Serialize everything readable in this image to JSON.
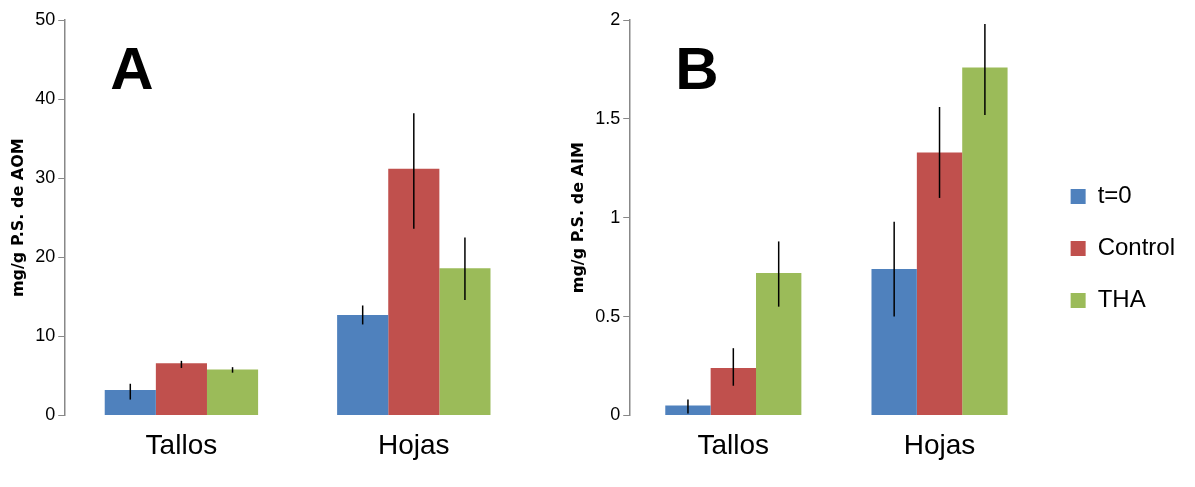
{
  "chart_data": [
    {
      "type": "bar",
      "title": "A",
      "ylabel": "mg/g P.S. de AOM",
      "categories": [
        "Tallos",
        "Hojas"
      ],
      "ylim": [
        0,
        50
      ],
      "yticks": [
        0,
        10,
        20,
        30,
        40,
        50
      ],
      "grid": false,
      "legend": false,
      "series": [
        {
          "color": "#4f81bd",
          "values": [
            3.2,
            12.7
          ],
          "errors": [
            [
              2.0,
              4.0
            ],
            [
              11.5,
              13.9
            ]
          ]
        },
        {
          "color": "#c0504d",
          "values": [
            6.6,
            31.2
          ],
          "errors": [
            [
              6.0,
              6.9
            ],
            [
              23.6,
              38.2
            ]
          ]
        },
        {
          "color": "#9bbb59",
          "values": [
            5.8,
            18.6
          ],
          "errors": [
            [
              5.4,
              6.1
            ],
            [
              14.6,
              22.5
            ]
          ]
        }
      ]
    },
    {
      "type": "bar",
      "title": "B",
      "ylabel": "mg/g P.S. de AIM",
      "categories": [
        "Tallos",
        "Hojas"
      ],
      "ylim": [
        0,
        2
      ],
      "yticks": [
        0,
        0.5,
        1,
        1.5,
        2
      ],
      "grid": false,
      "legend": "right",
      "series": [
        {
          "name": "t=0",
          "color": "#4f81bd",
          "values": [
            0.05,
            0.74
          ],
          "errors": [
            [
              0.01,
              0.08
            ],
            [
              0.5,
              0.98
            ]
          ]
        },
        {
          "name": "Control",
          "color": "#c0504d",
          "values": [
            0.24,
            1.33
          ],
          "errors": [
            [
              0.15,
              0.34
            ],
            [
              1.1,
              1.56
            ]
          ]
        },
        {
          "name": "THA",
          "color": "#9bbb59",
          "values": [
            0.72,
            1.76
          ],
          "errors": [
            [
              0.55,
              0.88
            ],
            [
              1.52,
              1.98
            ]
          ]
        }
      ]
    }
  ]
}
